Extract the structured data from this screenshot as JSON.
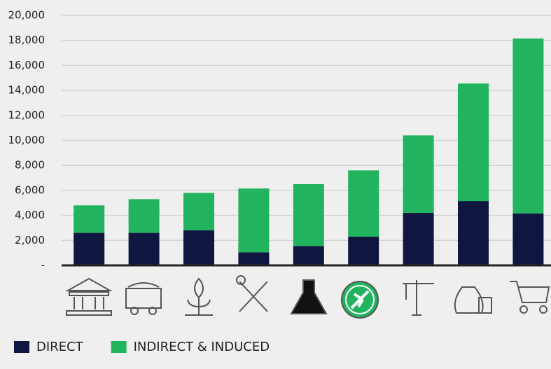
{
  "chart_data": {
    "type": "stacked_bar",
    "categories": [
      null,
      null,
      null,
      null,
      null,
      null,
      null,
      null,
      null
    ],
    "series": [
      {
        "name": "DIRECT",
        "color": "#0f1740",
        "values": [
          2600,
          2600,
          2800,
          1050,
          1550,
          2300,
          4200,
          5150,
          4150
        ]
      },
      {
        "name": "INDIRECT & INDUCED",
        "color": "#22b35e",
        "values": [
          2200,
          2700,
          3000,
          5100,
          4950,
          5300,
          6200,
          9400,
          14000
        ]
      }
    ],
    "ylim": [
      0,
      20000
    ],
    "yticks": [
      {
        "value": 0,
        "label": "-"
      },
      {
        "value": 2000,
        "label": "2,000"
      },
      {
        "value": 4000,
        "label": "4,000"
      },
      {
        "value": 6000,
        "label": "6,000"
      },
      {
        "value": 8000,
        "label": "8,000"
      },
      {
        "value": 10000,
        "label": "10,000"
      },
      {
        "value": 12000,
        "label": "12,000"
      },
      {
        "value": 14000,
        "label": "14,000"
      },
      {
        "value": 16000,
        "label": "16,000"
      },
      {
        "value": 18000,
        "label": "18,000"
      },
      {
        "value": 20000,
        "label": "20,000"
      }
    ],
    "grid": true,
    "legend": "bottom-left"
  }
}
